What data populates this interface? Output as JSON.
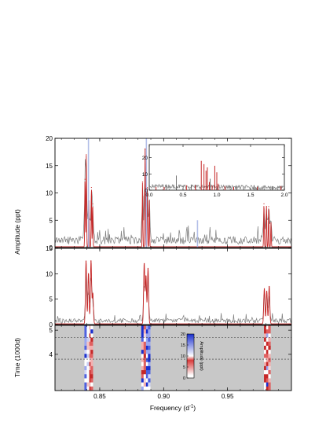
{
  "chart_data": {
    "type": "line",
    "x_label": "Frequency (d",
    "x_label_sup": "-1",
    "x_label_close": ")",
    "x_range": [
      0.815,
      1.0
    ],
    "x_ticks": [
      "0.85",
      "0.90",
      "0.95"
    ],
    "x_tick_values": [
      0.85,
      0.9,
      0.95
    ],
    "panels": [
      {
        "id": "top",
        "y_label": "Amplitude (ppt)",
        "y_range": [
          0,
          20
        ],
        "y_ticks": [
          "0",
          "5",
          "10",
          "15",
          "20"
        ],
        "y_tick_values": [
          0,
          5,
          10,
          15,
          20
        ],
        "series": [
          {
            "name": "",
            "color": "#7a7a7a",
            "role": "observed spectrum (noise ~1–2 ppt)"
          },
          {
            "name": "",
            "color": "#c62828",
            "role": "model peaks",
            "peaks": [
              [
                0.8385,
                12.5
              ],
              [
                0.8395,
                17.0
              ],
              [
                0.8415,
                8.5
              ],
              [
                0.8435,
                11.0
              ],
              [
                0.8445,
                8.0
              ],
              [
                0.8835,
                12.0
              ],
              [
                0.8855,
                18.0
              ],
              [
                0.8872,
                11.0
              ],
              [
                0.8888,
                8.5
              ],
              [
                0.9785,
                8.0
              ],
              [
                0.9805,
                7.5
              ],
              [
                0.9822,
                7.5
              ],
              [
                0.984,
                4.5
              ]
            ]
          },
          {
            "name": "",
            "color": "#aab8e6",
            "role": "highlighted frequencies",
            "lines": [
              [
                0.8412,
                20
              ],
              [
                0.8865,
                20
              ],
              [
                0.9265,
                5
              ]
            ]
          }
        ]
      },
      {
        "id": "middle",
        "y_label": "",
        "y_range": [
          0,
          15
        ],
        "y_ticks": [
          "0",
          "5",
          "10",
          "15"
        ],
        "y_tick_values": [
          0,
          5,
          10,
          15
        ],
        "series": [
          {
            "name": "",
            "color": "#7a7a7a",
            "role": "observed spectrum"
          },
          {
            "name": "",
            "color": "#c62828",
            "role": "model envelope",
            "peaks": [
              [
                0.8393,
                12.5
              ],
              [
                0.8412,
                10.0
              ],
              [
                0.8432,
                12.5
              ],
              [
                0.8446,
                6.0
              ],
              [
                0.8848,
                12.0
              ],
              [
                0.8862,
                9.5
              ],
              [
                0.8878,
                11.0
              ],
              [
                0.9788,
                7.0
              ],
              [
                0.9807,
                6.5
              ],
              [
                0.9826,
                7.5
              ]
            ]
          }
        ]
      },
      {
        "id": "bottom",
        "type": "heatmap",
        "y_label": "Time (1000d)",
        "y_range": [
          2.5,
          5.2
        ],
        "y_ticks": [
          "4",
          "5"
        ],
        "y_tick_values": [
          4,
          5
        ],
        "dashed_lines": [
          4.7,
          3.8
        ],
        "colorbar": {
          "label": "Amplitude (ppt)",
          "ticks": [
            "20",
            "15",
            "10",
            "5",
            "0"
          ],
          "tick_values": [
            20,
            15,
            10,
            5,
            0
          ]
        },
        "strips": [
          {
            "f": 0.839,
            "mode": "blue"
          },
          {
            "f": 0.8408,
            "mode": "pale"
          },
          {
            "f": 0.8428,
            "mode": "red"
          },
          {
            "f": 0.8438,
            "mode": "mixed"
          },
          {
            "f": 0.8835,
            "mode": "mixed"
          },
          {
            "f": 0.8853,
            "mode": "red"
          },
          {
            "f": 0.8872,
            "mode": "blue"
          },
          {
            "f": 0.8887,
            "mode": "blue"
          },
          {
            "f": 0.9795,
            "mode": "red"
          },
          {
            "f": 0.9812,
            "mode": "mixed"
          },
          {
            "f": 0.9828,
            "mode": "red"
          }
        ]
      }
    ],
    "inset": {
      "x_range": [
        0.0,
        2.0
      ],
      "x_ticks": [
        "0.0",
        "0.5",
        "1.0",
        "1.5",
        "2.0"
      ],
      "x_tick_values": [
        0,
        0.5,
        1,
        1.5,
        2
      ],
      "y_range": [
        0,
        28
      ],
      "y_ticks": [
        "0",
        "10",
        "20"
      ],
      "y_tick_values": [
        0,
        10,
        20
      ],
      "gray_peaks": [
        [
          0.4,
          9.0
        ],
        [
          0.9,
          7.0
        ],
        [
          1.55,
          3.0
        ],
        [
          1.82,
          2.5
        ],
        [
          0.25,
          3.0
        ],
        [
          0.62,
          3.5
        ]
      ],
      "red_peaks": [
        [
          0.1,
          2.0
        ],
        [
          0.22,
          2.0
        ],
        [
          0.55,
          3.0
        ],
        [
          0.68,
          3.0
        ],
        [
          0.77,
          18.0
        ],
        [
          0.81,
          16.0
        ],
        [
          0.84,
          12.0
        ],
        [
          0.86,
          14.0
        ],
        [
          0.89,
          5.0
        ],
        [
          0.93,
          3.0
        ],
        [
          0.97,
          15.0
        ],
        [
          1.0,
          11.0
        ],
        [
          1.02,
          4.0
        ],
        [
          1.12,
          2.5
        ],
        [
          1.25,
          2.0
        ],
        [
          1.6,
          2.0
        ],
        [
          1.95,
          2.5
        ]
      ]
    }
  }
}
